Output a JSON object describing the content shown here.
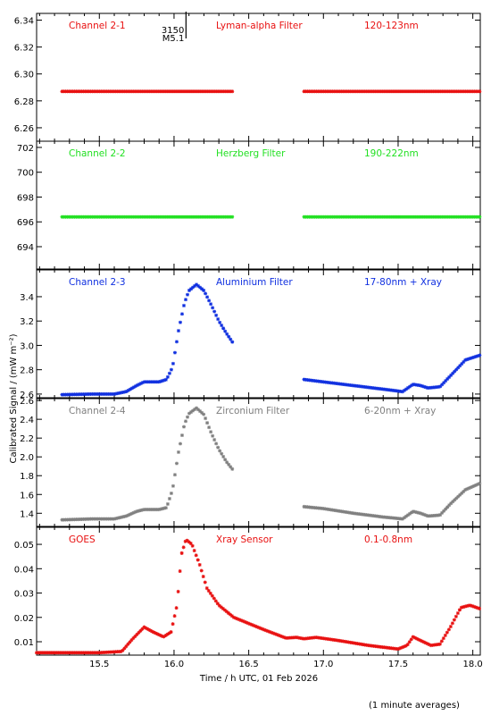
{
  "figure": {
    "ylabel": "Calibrated Signal / (mW m⁻²)",
    "xlabel": "Time / h UTC, 01 Feb 2026",
    "footnote": "(1 minute averages)",
    "flare_marker": {
      "x": 16.08,
      "labels": [
        "3150",
        "M5.1"
      ]
    }
  },
  "chart_data": [
    {
      "type": "scatter",
      "labels": [
        "Channel 2-1",
        "Lyman-alpha Filter",
        "120-123nm"
      ],
      "color": "#e81010",
      "xlim": [
        15.08,
        18.05
      ],
      "ylim": [
        6.25,
        6.345
      ],
      "yticks": [
        6.26,
        6.28,
        6.3,
        6.32,
        6.34
      ],
      "ytick_labels": [
        "6.26",
        "6.28",
        "6.30",
        "6.32",
        "6.34"
      ],
      "series": [
        {
          "segments": [
            {
              "knots": [
                [
                  15.25,
                  6.287
                ],
                [
                  16.4,
                  6.287
                ]
              ]
            },
            {
              "knots": [
                [
                  16.87,
                  6.287
                ],
                [
                  18.05,
                  6.287
                ]
              ]
            }
          ]
        }
      ]
    },
    {
      "type": "scatter",
      "labels": [
        "Channel 2-2",
        "Herzberg Filter",
        "190-222nm"
      ],
      "color": "#22e022",
      "xlim": [
        15.08,
        18.05
      ],
      "ylim": [
        692.2,
        702.5
      ],
      "yticks": [
        694,
        696,
        698,
        700,
        702
      ],
      "ytick_labels": [
        "694",
        "696",
        "698",
        "700",
        "702"
      ],
      "series": [
        {
          "segments": [
            {
              "knots": [
                [
                  15.25,
                  696.4
                ],
                [
                  16.4,
                  696.4
                ]
              ]
            },
            {
              "knots": [
                [
                  16.87,
                  696.4
                ],
                [
                  18.05,
                  696.4
                ]
              ]
            }
          ]
        }
      ]
    },
    {
      "type": "scatter",
      "labels": [
        "Channel 2-3",
        "Aluminium Filter",
        "17-80nm + Xray"
      ],
      "color": "#1030e0",
      "xlim": [
        15.08,
        18.05
      ],
      "ylim": [
        2.57,
        3.62
      ],
      "yticks": [
        2.6,
        2.8,
        3.0,
        3.2,
        3.4
      ],
      "ytick_labels": [
        "2.6",
        "2.8",
        "3.0",
        "3.2",
        "3.4"
      ],
      "series": [
        {
          "segments": [
            {
              "knots": [
                [
                  15.25,
                  2.595
                ],
                [
                  15.45,
                  2.6
                ],
                [
                  15.6,
                  2.6
                ],
                [
                  15.68,
                  2.62
                ],
                [
                  15.75,
                  2.67
                ],
                [
                  15.8,
                  2.7
                ],
                [
                  15.9,
                  2.7
                ],
                [
                  15.95,
                  2.72
                ],
                [
                  15.99,
                  2.82
                ],
                [
                  16.03,
                  3.12
                ],
                [
                  16.07,
                  3.35
                ],
                [
                  16.1,
                  3.45
                ],
                [
                  16.15,
                  3.5
                ],
                [
                  16.2,
                  3.45
                ],
                [
                  16.25,
                  3.33
                ],
                [
                  16.3,
                  3.2
                ],
                [
                  16.35,
                  3.1
                ],
                [
                  16.4,
                  3.01
                ]
              ]
            },
            {
              "knots": [
                [
                  16.87,
                  2.72
                ],
                [
                  17.0,
                  2.7
                ],
                [
                  17.2,
                  2.67
                ],
                [
                  17.4,
                  2.64
                ],
                [
                  17.53,
                  2.62
                ],
                [
                  17.6,
                  2.68
                ],
                [
                  17.65,
                  2.67
                ],
                [
                  17.7,
                  2.65
                ],
                [
                  17.78,
                  2.66
                ],
                [
                  17.85,
                  2.75
                ],
                [
                  17.95,
                  2.88
                ],
                [
                  18.05,
                  2.92
                ]
              ]
            }
          ]
        }
      ]
    },
    {
      "type": "scatter",
      "labels": [
        "Channel 2-4",
        "Zirconium Filter",
        "6-20nm + Xray"
      ],
      "color": "#808080",
      "xlim": [
        15.08,
        18.05
      ],
      "ylim": [
        1.26,
        2.62
      ],
      "yticks": [
        1.4,
        1.6,
        1.8,
        2.0,
        2.2,
        2.4,
        2.6
      ],
      "ytick_labels": [
        "1.4",
        "1.6",
        "1.8",
        "2.0",
        "2.2",
        "2.4",
        "2.6"
      ],
      "series": [
        {
          "segments": [
            {
              "knots": [
                [
                  15.25,
                  1.33
                ],
                [
                  15.45,
                  1.34
                ],
                [
                  15.6,
                  1.34
                ],
                [
                  15.68,
                  1.37
                ],
                [
                  15.75,
                  1.42
                ],
                [
                  15.8,
                  1.44
                ],
                [
                  15.9,
                  1.44
                ],
                [
                  15.95,
                  1.46
                ],
                [
                  15.99,
                  1.65
                ],
                [
                  16.03,
                  2.05
                ],
                [
                  16.07,
                  2.35
                ],
                [
                  16.1,
                  2.46
                ],
                [
                  16.15,
                  2.52
                ],
                [
                  16.2,
                  2.45
                ],
                [
                  16.25,
                  2.25
                ],
                [
                  16.3,
                  2.08
                ],
                [
                  16.35,
                  1.95
                ],
                [
                  16.4,
                  1.85
                ]
              ]
            },
            {
              "knots": [
                [
                  16.87,
                  1.47
                ],
                [
                  17.0,
                  1.45
                ],
                [
                  17.2,
                  1.4
                ],
                [
                  17.4,
                  1.36
                ],
                [
                  17.53,
                  1.34
                ],
                [
                  17.6,
                  1.42
                ],
                [
                  17.65,
                  1.4
                ],
                [
                  17.7,
                  1.37
                ],
                [
                  17.78,
                  1.38
                ],
                [
                  17.85,
                  1.5
                ],
                [
                  17.95,
                  1.65
                ],
                [
                  18.05,
                  1.72
                ]
              ]
            }
          ]
        }
      ]
    },
    {
      "type": "scatter",
      "labels": [
        "GOES",
        "Xray Sensor",
        "0.1-0.8nm"
      ],
      "color": "#e81010",
      "xlim": [
        15.08,
        18.05
      ],
      "ylim": [
        0.0045,
        0.057
      ],
      "yticks": [
        0.01,
        0.02,
        0.03,
        0.04,
        0.05
      ],
      "ytick_labels": [
        "0.01",
        "0.02",
        "0.03",
        "0.04",
        "0.05"
      ],
      "xticks": [
        15.5,
        16.0,
        16.5,
        17.0,
        17.5,
        18.0
      ],
      "xtick_labels": [
        "15.5",
        "16.0",
        "16.5",
        "17.0",
        "17.5",
        "18.0"
      ],
      "series": [
        {
          "segments": [
            {
              "knots": [
                [
                  15.08,
                  0.0055
                ],
                [
                  15.5,
                  0.0055
                ],
                [
                  15.65,
                  0.006
                ],
                [
                  15.72,
                  0.011
                ],
                [
                  15.8,
                  0.016
                ],
                [
                  15.86,
                  0.014
                ],
                [
                  15.93,
                  0.012
                ],
                [
                  15.98,
                  0.014
                ],
                [
                  16.02,
                  0.025
                ],
                [
                  16.05,
                  0.046
                ],
                [
                  16.08,
                  0.052
                ],
                [
                  16.12,
                  0.05
                ],
                [
                  16.17,
                  0.042
                ],
                [
                  16.22,
                  0.032
                ],
                [
                  16.3,
                  0.025
                ],
                [
                  16.4,
                  0.02
                ],
                [
                  16.6,
                  0.015
                ],
                [
                  16.75,
                  0.0115
                ],
                [
                  16.82,
                  0.0118
                ],
                [
                  16.87,
                  0.0112
                ],
                [
                  16.95,
                  0.0118
                ],
                [
                  17.1,
                  0.0105
                ],
                [
                  17.3,
                  0.0085
                ],
                [
                  17.5,
                  0.007
                ],
                [
                  17.56,
                  0.0085
                ],
                [
                  17.6,
                  0.012
                ],
                [
                  17.65,
                  0.0105
                ],
                [
                  17.72,
                  0.0085
                ],
                [
                  17.78,
                  0.009
                ],
                [
                  17.85,
                  0.016
                ],
                [
                  17.92,
                  0.024
                ],
                [
                  17.98,
                  0.025
                ],
                [
                  18.05,
                  0.0235
                ]
              ]
            }
          ]
        }
      ]
    }
  ]
}
